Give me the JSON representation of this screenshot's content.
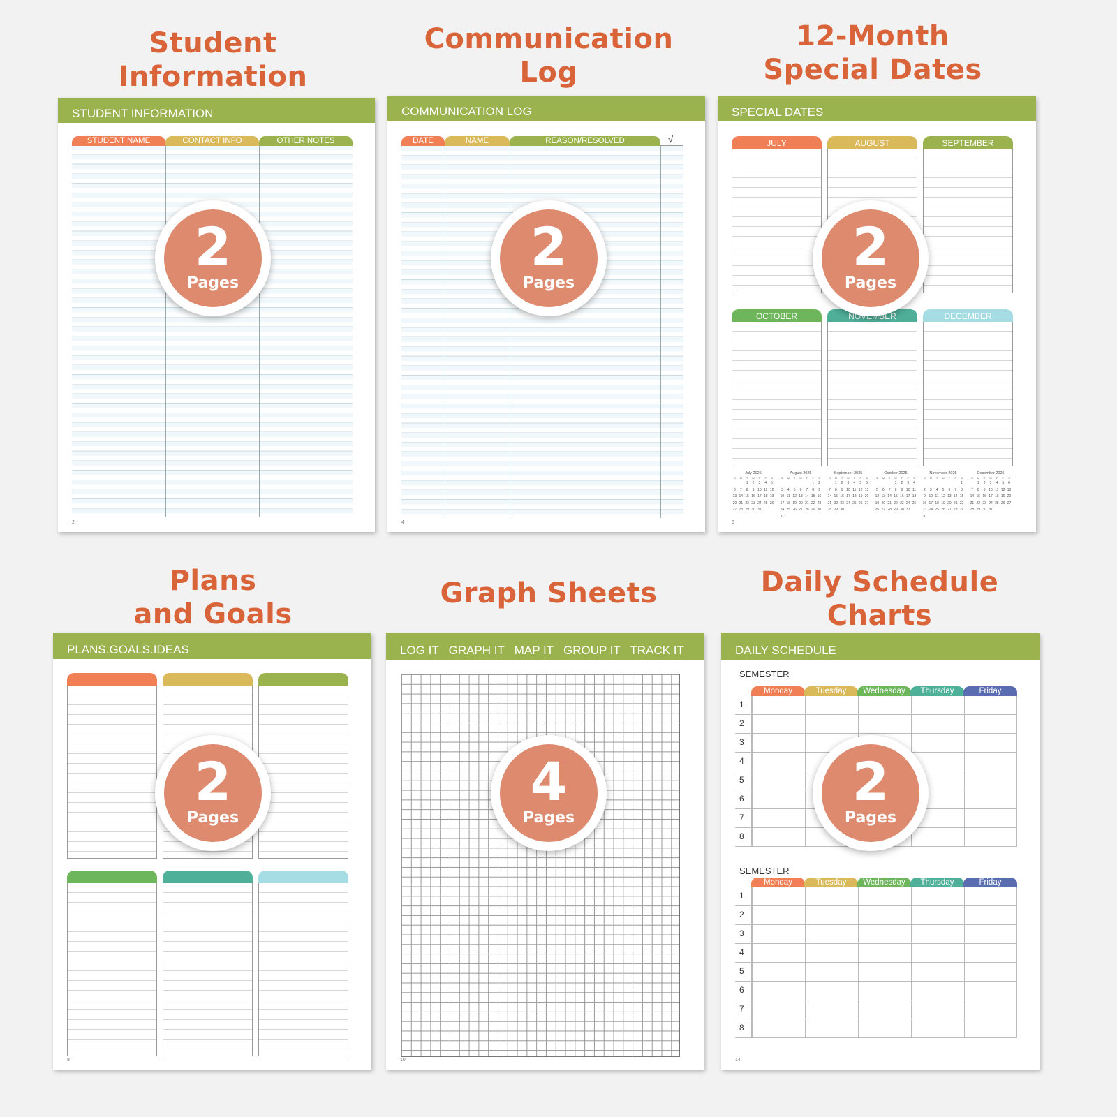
{
  "colors": {
    "accent_title": "#d9643a",
    "header_green": "#9bb34f",
    "orange": "#f07f55",
    "yellow": "#d9b95a",
    "green": "#9bb34f",
    "green2": "#6db65b",
    "teal": "#4fb09a",
    "light_blue": "#a6dce4",
    "blue": "#5a6db0",
    "badge": "#dd8a6e"
  },
  "sections": [
    {
      "title_lines": [
        "Student",
        "Information"
      ],
      "header": "STUDENT INFORMATION",
      "badge": {
        "count": "2",
        "label": "Pages"
      },
      "page_number": "2",
      "columns": [
        "STUDENT NAME",
        "CONTACT INFO",
        "OTHER NOTES"
      ]
    },
    {
      "title_lines": [
        "Communication",
        "Log"
      ],
      "header": "COMMUNICATION LOG",
      "badge": {
        "count": "2",
        "label": "Pages"
      },
      "page_number": "4",
      "columns": [
        "DATE",
        "NAME",
        "REASON/RESOLVED"
      ],
      "check_mark": "√"
    },
    {
      "title_lines": [
        "12-Month",
        "Special Dates"
      ],
      "header": "SPECIAL DATES",
      "badge": {
        "count": "2",
        "label": "Pages"
      },
      "page_number": "6",
      "months": [
        "JULY",
        "AUGUST",
        "SEPTEMBER",
        "OCTOBER",
        "NOVEMBER",
        "DECEMBER"
      ],
      "mini_calendars": [
        {
          "title": "July 2025",
          "first_weekday": 2,
          "days": 31
        },
        {
          "title": "August 2025",
          "first_weekday": 5,
          "days": 31
        },
        {
          "title": "September 2025",
          "first_weekday": 1,
          "days": 30
        },
        {
          "title": "October 2025",
          "first_weekday": 3,
          "days": 31
        },
        {
          "title": "November 2025",
          "first_weekday": 6,
          "days": 30
        },
        {
          "title": "December 2025",
          "first_weekday": 1,
          "days": 31
        }
      ],
      "weekday_letters": [
        "S",
        "M",
        "T",
        "W",
        "T",
        "F",
        "S"
      ]
    },
    {
      "title_lines": [
        "Plans",
        "and Goals"
      ],
      "header": "PLANS.GOALS.IDEAS",
      "badge": {
        "count": "2",
        "label": "Pages"
      },
      "page_number": "8"
    },
    {
      "title_lines": [
        "Graph Sheets"
      ],
      "header": "LOG IT   GRAPH IT   MAP IT   GROUP IT   TRACK IT",
      "badge": {
        "count": "4",
        "label": "Pages"
      },
      "page_number": "10"
    },
    {
      "title_lines": [
        "Daily Schedule",
        "Charts"
      ],
      "header": "DAILY SCHEDULE",
      "badge": {
        "count": "2",
        "label": "Pages"
      },
      "page_number": "14",
      "semester_label": "SEMESTER",
      "days": [
        "Monday",
        "Tuesday",
        "Wednesday",
        "Thursday",
        "Friday"
      ],
      "periods": [
        "1",
        "2",
        "3",
        "4",
        "5",
        "6",
        "7",
        "8"
      ]
    }
  ]
}
